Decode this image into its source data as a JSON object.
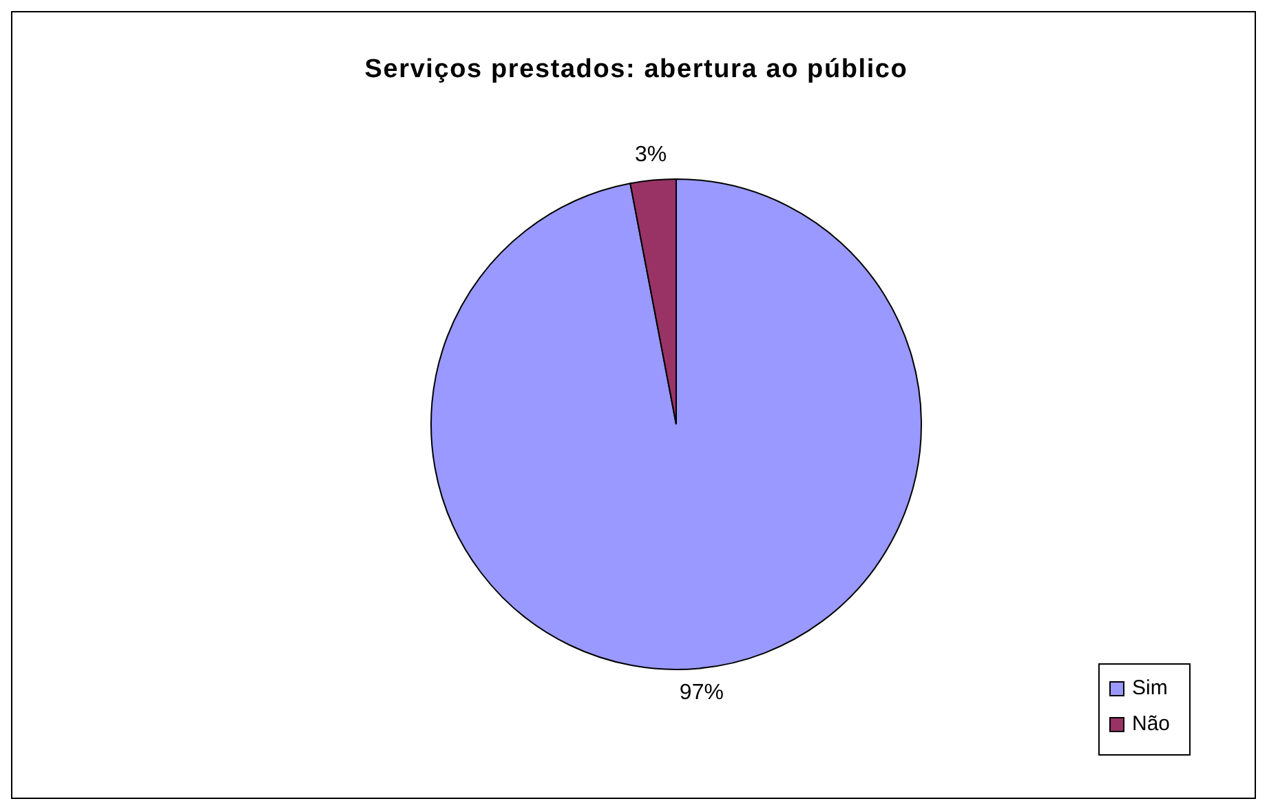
{
  "chart_data": {
    "type": "pie",
    "title": "Serviços prestados: abertura ao público",
    "categories": [
      "Sim",
      "Não"
    ],
    "values": [
      97,
      3
    ],
    "colors": [
      "#9999ff",
      "#993366"
    ],
    "value_labels": [
      "97%",
      "3%"
    ],
    "legend": "bottom right"
  }
}
